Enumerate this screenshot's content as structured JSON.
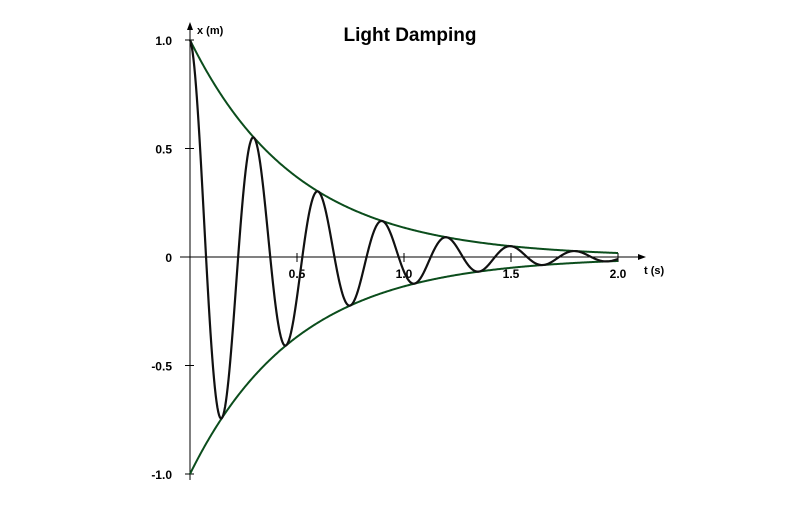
{
  "chart_data": {
    "type": "line",
    "title": "Light Damping",
    "xlabel": "t (s)",
    "ylabel": "x (m)",
    "xlim": [
      0,
      2.1
    ],
    "ylim": [
      -1.0,
      1.0
    ],
    "x_ticks": [
      {
        "value": 0.5,
        "label": "0.5"
      },
      {
        "value": 1.0,
        "label": "1.0"
      },
      {
        "value": 1.5,
        "label": "1.5"
      },
      {
        "value": 2.0,
        "label": "2.0"
      }
    ],
    "y_ticks": [
      {
        "value": 1.0,
        "label": "1.0"
      },
      {
        "value": 0.5,
        "label": "0.5"
      },
      {
        "value": 0,
        "label": "0"
      },
      {
        "value": -0.5,
        "label": "-0.5"
      },
      {
        "value": -1.0,
        "label": "-1.0"
      }
    ],
    "oscillation": {
      "amplitude": 1.0,
      "decay_rate": 2.0,
      "period": 0.3,
      "t_start": 0,
      "t_end": 2.0
    },
    "colors": {
      "oscillation": "#111111",
      "envelope": "#0b4d1c",
      "axis": "#000000"
    }
  }
}
